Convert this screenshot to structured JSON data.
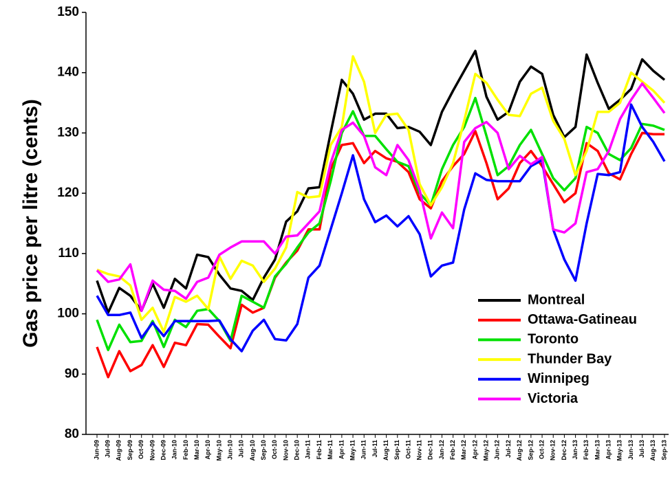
{
  "chart_data": {
    "type": "line",
    "y_label": "Gas price per litre (cents)",
    "categories": [
      "Jun-09",
      "Jul-09",
      "Aug-09",
      "Sep-09",
      "Oct-09",
      "Nov-09",
      "Dec-09",
      "Jan-10",
      "Feb-10",
      "Mar-10",
      "Apr-10",
      "May-10",
      "Jun-10",
      "Jul-10",
      "Aug-10",
      "Sep-10",
      "Oct-10",
      "Nov-10",
      "Dec-10",
      "Jan-11",
      "Feb-11",
      "Mar-11",
      "Apr-11",
      "May-11",
      "Jun-11",
      "Jul-11",
      "Aug-11",
      "Sep-11",
      "Oct-11",
      "Nov-11",
      "Dec-11",
      "Jan-12",
      "Feb-12",
      "Mar-12",
      "Apr-12",
      "May-12",
      "Jun-12",
      "Jul-12",
      "Aug-12",
      "Sep-12",
      "Oct-12",
      "Nov-12",
      "Dec-12",
      "Jan-13",
      "Feb-13",
      "Mar-13",
      "Apr-13",
      "May-13",
      "Jun-13",
      "Jul-13",
      "Aug-13",
      "Sep-13"
    ],
    "ylim": [
      80,
      150
    ],
    "yticks": [
      80,
      90,
      100,
      110,
      120,
      130,
      140,
      150
    ],
    "legend": "lower right",
    "series": [
      {
        "name": "Montreal",
        "color": "#000000",
        "values": [
          105.5,
          100.2,
          104.3,
          103,
          100.5,
          105,
          101,
          105.8,
          104.2,
          109.8,
          109.4,
          106.5,
          104.2,
          103.8,
          102.3,
          106,
          109,
          115.3,
          117,
          120.8,
          121,
          130,
          138.8,
          136.5,
          132.2,
          133.2,
          133.2,
          130.8,
          131,
          130.2,
          128,
          133.5,
          137,
          140.3,
          143.6,
          136,
          132.2,
          133.5,
          138.5,
          141,
          139.8,
          133,
          129.3,
          131,
          143,
          138.3,
          134,
          135.5,
          137.3,
          142.2,
          140.3,
          138.8
        ]
      },
      {
        "name": "Ottawa-Gatineau",
        "color": "#ff0000",
        "values": [
          94.5,
          89.5,
          93.8,
          90.5,
          91.5,
          94.8,
          91.2,
          95.2,
          94.8,
          98.3,
          98.2,
          96.2,
          94.3,
          101.5,
          100.2,
          101,
          106,
          108.5,
          110.5,
          114,
          114,
          124,
          128,
          128.3,
          125,
          127,
          125.8,
          125.2,
          123.5,
          119,
          117.5,
          122,
          124.5,
          126.5,
          130.3,
          125,
          119,
          120.8,
          125,
          127,
          124.5,
          121.5,
          118.5,
          120,
          128.3,
          127,
          123.3,
          122.3,
          126.5,
          130,
          129.8,
          129.8
        ]
      },
      {
        "name": "Toronto",
        "color": "#00e000",
        "values": [
          99,
          94,
          98.2,
          95.3,
          95.5,
          98.8,
          94.5,
          99,
          97.8,
          100.5,
          100.8,
          98.8,
          95.5,
          103,
          102,
          101,
          106.2,
          108.3,
          111,
          113.5,
          115,
          122,
          130,
          133.6,
          129.5,
          129.5,
          127.3,
          125.2,
          124.5,
          120,
          118,
          124,
          128,
          131,
          135.8,
          129.5,
          123,
          124.5,
          128,
          130.5,
          126.5,
          122.5,
          120.5,
          122.5,
          131,
          130,
          126.5,
          125.5,
          127.5,
          131.5,
          131.2,
          130.5
        ]
      },
      {
        "name": "Thunder Bay",
        "color": "#ffff00",
        "values": [
          107.3,
          106.6,
          106.2,
          104.7,
          99,
          101,
          97,
          102.8,
          102,
          103,
          100.8,
          109.5,
          105.8,
          108.8,
          108,
          105.3,
          107.5,
          111,
          120.2,
          119.3,
          119.5,
          128,
          131,
          142.7,
          138.5,
          130,
          133,
          133.2,
          130.5,
          121.5,
          118,
          121,
          125,
          132,
          139.8,
          138.3,
          135.5,
          133,
          132.8,
          136.5,
          137.5,
          132,
          129,
          123,
          127,
          133.5,
          133.5,
          135,
          140,
          138.5,
          137,
          135
        ]
      },
      {
        "name": "Winnipeg",
        "color": "#0000ff",
        "values": [
          103,
          99.8,
          99.8,
          100.2,
          96,
          98.5,
          96.3,
          98.8,
          98.8,
          98.8,
          98.8,
          98.9,
          95.8,
          93.8,
          97.2,
          99,
          95.8,
          95.6,
          98.3,
          106,
          108,
          114,
          120,
          126.3,
          119,
          115.2,
          116.3,
          114.5,
          116.2,
          113.2,
          106.2,
          108,
          108.5,
          117.3,
          123.3,
          122.2,
          122,
          122,
          122,
          124.5,
          125.5,
          114,
          109,
          105.5,
          115,
          123.2,
          123,
          123.5,
          134.7,
          131,
          128.5,
          125.3
        ]
      },
      {
        "name": "Victoria",
        "color": "#ff00ff",
        "values": [
          107.2,
          105.3,
          105.7,
          108.2,
          100.5,
          105.5,
          104,
          103.8,
          102.5,
          105.3,
          106,
          109.8,
          111,
          112,
          112,
          112,
          110,
          112.8,
          113,
          115,
          117,
          125,
          130.5,
          131.7,
          129.5,
          124.3,
          123,
          128,
          125.5,
          120.5,
          112.5,
          116.8,
          114.2,
          128.5,
          130.8,
          131.8,
          130,
          124,
          126.2,
          124.8,
          126,
          114,
          113.5,
          115,
          123.5,
          124,
          127,
          132.3,
          135.5,
          138.2,
          135.8,
          133.3
        ]
      }
    ]
  }
}
